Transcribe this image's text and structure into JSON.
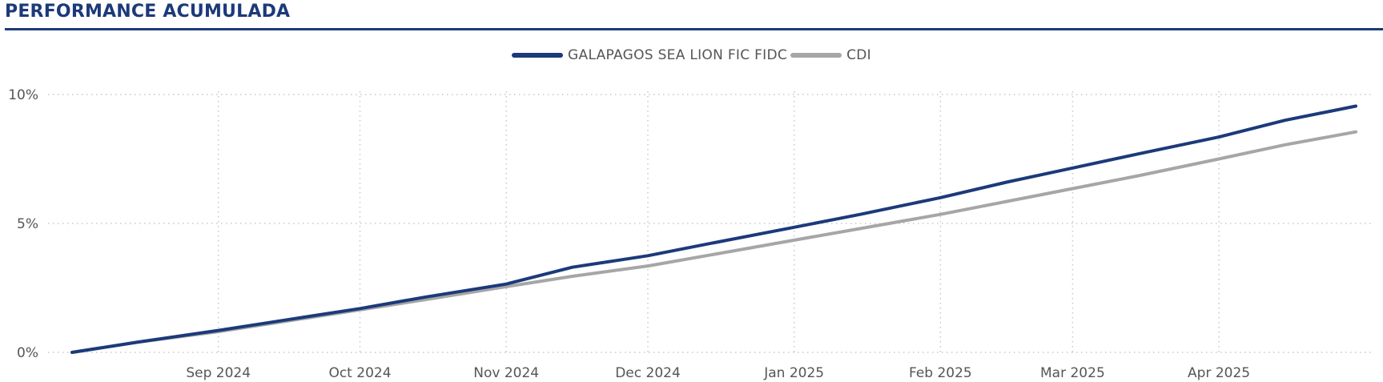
{
  "header": {
    "title": "PERFORMANCE ACUMULADA",
    "title_color": "#1c3a7a",
    "rule_color": "#1c3a7a"
  },
  "chart_data": {
    "type": "line",
    "title": "PERFORMANCE ACUMULADA",
    "xlabel": "",
    "ylabel": "",
    "x_range": [
      "2024-08-01",
      "2025-04-30"
    ],
    "ylim": [
      0,
      10
    ],
    "y_ticks": [
      0,
      5,
      10
    ],
    "y_tick_labels": [
      "0%",
      "5%",
      "10%"
    ],
    "x_ticks": [
      "2024-09-01",
      "2024-10-01",
      "2024-11-01",
      "2024-12-01",
      "2025-01-01",
      "2025-02-01",
      "2025-03-01",
      "2025-04-01"
    ],
    "x_tick_labels": [
      "Sep 2024",
      "Oct 2024",
      "Nov 2024",
      "Dec 2024",
      "Jan 2025",
      "Feb 2025",
      "Mar 2025",
      "Apr 2025"
    ],
    "grid": true,
    "legend_position": "top-center",
    "series": [
      {
        "name": "GALAPAGOS SEA LION FIC FIDC",
        "color": "#1c3a7a",
        "points": [
          [
            "2024-08-01",
            0.0
          ],
          [
            "2024-08-15",
            0.4
          ],
          [
            "2024-09-01",
            0.85
          ],
          [
            "2024-09-15",
            1.25
          ],
          [
            "2024-10-01",
            1.7
          ],
          [
            "2024-10-15",
            2.15
          ],
          [
            "2024-11-01",
            2.65
          ],
          [
            "2024-11-15",
            3.3
          ],
          [
            "2024-12-01",
            3.75
          ],
          [
            "2024-12-15",
            4.25
          ],
          [
            "2025-01-01",
            4.85
          ],
          [
            "2025-01-15",
            5.35
          ],
          [
            "2025-02-01",
            6.0
          ],
          [
            "2025-02-15",
            6.6
          ],
          [
            "2025-03-01",
            7.15
          ],
          [
            "2025-03-15",
            7.7
          ],
          [
            "2025-04-01",
            8.35
          ],
          [
            "2025-04-15",
            9.0
          ],
          [
            "2025-04-30",
            9.55
          ]
        ]
      },
      {
        "name": "CDI",
        "color": "#a6a6a6",
        "points": [
          [
            "2024-08-01",
            0.0
          ],
          [
            "2024-08-15",
            0.4
          ],
          [
            "2024-09-01",
            0.8
          ],
          [
            "2024-09-15",
            1.2
          ],
          [
            "2024-10-01",
            1.65
          ],
          [
            "2024-10-15",
            2.05
          ],
          [
            "2024-11-01",
            2.55
          ],
          [
            "2024-11-15",
            2.95
          ],
          [
            "2024-12-01",
            3.35
          ],
          [
            "2024-12-15",
            3.8
          ],
          [
            "2025-01-01",
            4.35
          ],
          [
            "2025-01-15",
            4.8
          ],
          [
            "2025-02-01",
            5.35
          ],
          [
            "2025-02-15",
            5.85
          ],
          [
            "2025-03-01",
            6.35
          ],
          [
            "2025-03-15",
            6.85
          ],
          [
            "2025-04-01",
            7.5
          ],
          [
            "2025-04-15",
            8.05
          ],
          [
            "2025-04-30",
            8.55
          ]
        ]
      }
    ]
  }
}
